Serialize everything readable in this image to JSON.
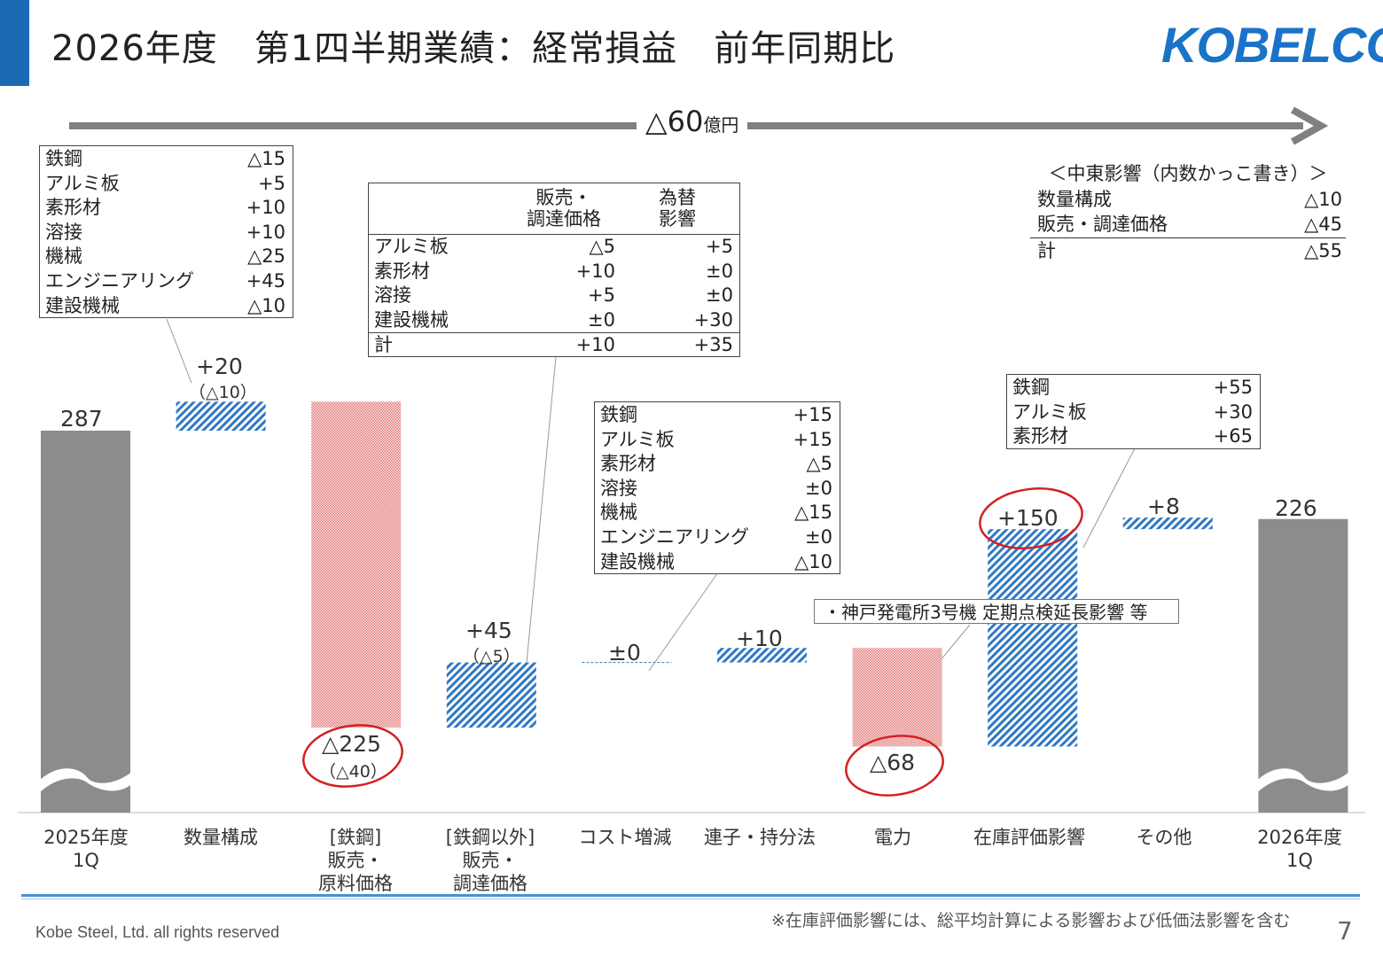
{
  "title": "2026年度　第1四半期業績：経常損益　前年同期比",
  "logo": "KOBELCO",
  "total_change": {
    "value": "△60",
    "unit": "億円"
  },
  "chart_data": {
    "type": "waterfall",
    "title": "2026年度　第1四半期業績：経常損益　前年同期比",
    "unit": "億円",
    "ylim": [
      0,
      300
    ],
    "axis_break": true,
    "categories": [
      "2025年度\n1Q",
      "数量構成",
      "[鉄鋼]\n販売・\n原料価格",
      "[鉄鋼以外]\n販売・\n調達価格",
      "コスト増減",
      "連子・持分法",
      "電力",
      "在庫評価影響",
      "その他",
      "2026年度\n1Q"
    ],
    "values": [
      287,
      20,
      -225,
      45,
      0,
      10,
      -68,
      150,
      8,
      226
    ],
    "kinds": [
      "total",
      "up",
      "down",
      "up",
      "neutral",
      "up",
      "down",
      "up",
      "up",
      "total"
    ],
    "labels": [
      "287",
      "+20",
      "△225",
      "+45",
      "±0",
      "+10",
      "△68",
      "+150",
      "+8",
      "226"
    ],
    "sub_labels": [
      "",
      "（△10）",
      "（△40）",
      "（△5）",
      "",
      "",
      "",
      "",
      "",
      ""
    ],
    "sub_values": [
      null,
      -10,
      -40,
      -5,
      null,
      null,
      null,
      null,
      null,
      null
    ],
    "circled": [
      false,
      false,
      true,
      false,
      false,
      false,
      true,
      true,
      false,
      false
    ],
    "colors": {
      "total": "#8c8c8c",
      "up": "#2f78c4",
      "down": "#e89a9a",
      "circle": "#d42020"
    }
  },
  "boxes": {
    "volume": {
      "rows": [
        [
          "鉄鋼",
          "△15"
        ],
        [
          "アルミ板",
          "+5"
        ],
        [
          "素形材",
          "+10"
        ],
        [
          "溶接",
          "+10"
        ],
        [
          "機械",
          "△25"
        ],
        [
          "エンジニアリング",
          "+45"
        ],
        [
          "建設機械",
          "△10"
        ]
      ]
    },
    "price": {
      "headers": [
        "販売・\n調達価格",
        "為替\n影響"
      ],
      "rows": [
        [
          "アルミ板",
          "△5",
          "+5"
        ],
        [
          "素形材",
          "+10",
          "±0"
        ],
        [
          "溶接",
          "+5",
          "±0"
        ],
        [
          "建設機械",
          "±0",
          "+30"
        ]
      ],
      "total": [
        "計",
        "+10",
        "+35"
      ]
    },
    "cost": {
      "rows": [
        [
          "鉄鋼",
          "+15"
        ],
        [
          "アルミ板",
          "+15"
        ],
        [
          "素形材",
          "△5"
        ],
        [
          "溶接",
          "±0"
        ],
        [
          "機械",
          "△15"
        ],
        [
          "エンジニアリング",
          "±0"
        ],
        [
          "建設機械",
          "△10"
        ]
      ]
    },
    "inventory": {
      "rows": [
        [
          "鉄鋼",
          "+55"
        ],
        [
          "アルミ板",
          "+30"
        ],
        [
          "素形材",
          "+65"
        ]
      ]
    }
  },
  "middle_east": {
    "title": "＜中東影響（内数かっこ書き）＞",
    "rows": [
      [
        "数量構成",
        "△10"
      ],
      [
        "販売・調達価格",
        "△45"
      ]
    ],
    "total": [
      "計",
      "△55"
    ]
  },
  "power_note": "・神戸発電所3号機 定期点検延長影響 等",
  "footnote": "※在庫評価影響には、総平均計算による影響および低価法影響を含む",
  "copyright": "Kobe Steel, Ltd.  all rights reserved",
  "page_number": "7"
}
